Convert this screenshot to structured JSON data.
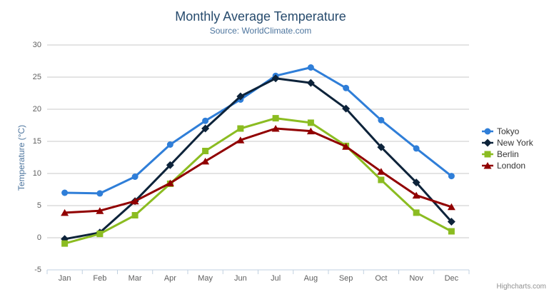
{
  "chart": {
    "title": "Monthly Average Temperature",
    "subtitle": "Source: WorldClimate.com",
    "credit": "Highcharts.com",
    "menu_icon": "hamburger-icon"
  },
  "chart_data": {
    "type": "line",
    "title": "Monthly Average Temperature",
    "subtitle": "Source: WorldClimate.com",
    "xlabel": "",
    "ylabel": "Temperature (°C)",
    "categories": [
      "Jan",
      "Feb",
      "Mar",
      "Apr",
      "May",
      "Jun",
      "Jul",
      "Aug",
      "Sep",
      "Oct",
      "Nov",
      "Dec"
    ],
    "series": [
      {
        "name": "Tokyo",
        "color": "#2f7ed8",
        "marker": "circle",
        "values": [
          7.0,
          6.9,
          9.5,
          14.5,
          18.2,
          21.5,
          25.2,
          26.5,
          23.3,
          18.3,
          13.9,
          9.6
        ]
      },
      {
        "name": "New York",
        "color": "#0d233a",
        "marker": "diamond",
        "values": [
          -0.2,
          0.8,
          5.7,
          11.3,
          17.0,
          22.0,
          24.8,
          24.1,
          20.1,
          14.1,
          8.6,
          2.5
        ]
      },
      {
        "name": "Berlin",
        "color": "#8bbc21",
        "marker": "square",
        "values": [
          -0.9,
          0.6,
          3.5,
          8.4,
          13.5,
          17.0,
          18.6,
          17.9,
          14.3,
          9.0,
          3.9,
          1.0
        ]
      },
      {
        "name": "London",
        "color": "#910000",
        "marker": "triangle",
        "values": [
          3.9,
          4.2,
          5.7,
          8.5,
          11.9,
          15.2,
          17.0,
          16.6,
          14.2,
          10.3,
          6.6,
          4.8
        ]
      }
    ],
    "ylim": [
      -5,
      30
    ],
    "ytick_interval": 5,
    "grid": true,
    "legend_position": "right",
    "colors": {
      "title": "#274b6d",
      "subtitle": "#4d759e",
      "axis_label": "#606060",
      "gridline": "#c8c8c8",
      "axis_line": "#c0d0e0",
      "legend_text": "#333333",
      "credit": "#909090"
    }
  }
}
